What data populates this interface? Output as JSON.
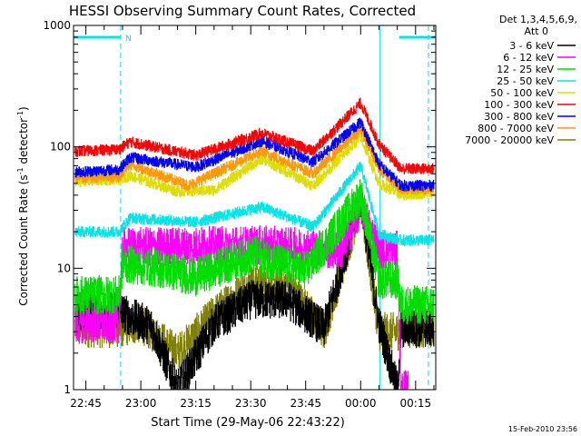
{
  "chart_data": {
    "type": "line",
    "title": "HESSI Observing Summary Count Rates, Corrected",
    "xlabel": "Start Time (29-May-06 22:43:22)",
    "ylabel_main": "Corrected Count Rate (s",
    "ylabel_sup1": "-1",
    "ylabel_mid": " detector",
    "ylabel_sup2": "-1",
    "ylabel_end": ")",
    "yscale": "log",
    "ylim": [
      1,
      1000
    ],
    "yticks": [
      {
        "value": 1,
        "label": "1"
      },
      {
        "value": 10,
        "label": "10"
      },
      {
        "value": 100,
        "label": "100"
      },
      {
        "value": 1000,
        "label": "1000"
      }
    ],
    "xlim_minutes": [
      -3.37,
      95.5
    ],
    "xticks": [
      {
        "minute": 0,
        "label": "22:45"
      },
      {
        "minute": 15,
        "label": "23:00"
      },
      {
        "minute": 30,
        "label": "23:15"
      },
      {
        "minute": 45,
        "label": "23:30"
      },
      {
        "minute": 60,
        "label": "23:45"
      },
      {
        "minute": 75,
        "label": "00:00"
      },
      {
        "minute": 90,
        "label": "00:15"
      }
    ],
    "night_bars": [
      [
        -3.37,
        9.5
      ],
      [
        85.5,
        95.5
      ]
    ],
    "night_marker": "N",
    "night_edges_solid": [
      -3.37,
      80.3
    ],
    "night_edges_dashed": [
      9.5,
      93.5
    ],
    "legend_header": [
      "Det 1,3,4,5,6,9,",
      "Att 0"
    ],
    "series": [
      {
        "name": "3 - 6 keV",
        "color": "#000000",
        "profile": [
          [
            -3,
            4.5
          ],
          [
            9,
            4.5
          ],
          [
            12,
            4
          ],
          [
            18,
            3.3
          ],
          [
            25,
            1
          ],
          [
            35,
            3.5
          ],
          [
            45,
            5.5
          ],
          [
            55,
            5.5
          ],
          [
            65,
            3.2
          ],
          [
            75,
            38
          ],
          [
            80,
            3.5
          ],
          [
            85,
            1
          ],
          [
            86,
            3.2
          ],
          [
            95,
            3.2
          ]
        ]
      },
      {
        "name": "6 - 12 keV",
        "color": "#ff00ff",
        "profile": [
          [
            -3,
            3.5
          ],
          [
            9,
            3.5
          ],
          [
            10,
            15
          ],
          [
            50,
            15.5
          ],
          [
            70,
            14
          ],
          [
            75,
            33
          ],
          [
            80,
            14
          ],
          [
            85,
            14
          ],
          [
            86,
            1
          ],
          [
            88,
            1
          ]
        ]
      },
      {
        "name": "12 - 25 keV",
        "color": "#00dd00",
        "profile": [
          [
            -3,
            6
          ],
          [
            9,
            6
          ],
          [
            10,
            11
          ],
          [
            20,
            10
          ],
          [
            30,
            8.5
          ],
          [
            45,
            13
          ],
          [
            60,
            9.5
          ],
          [
            75,
            40
          ],
          [
            80,
            8
          ],
          [
            85,
            8
          ],
          [
            86,
            5
          ],
          [
            95,
            5
          ]
        ]
      },
      {
        "name": "25 - 50 keV",
        "color": "#00e5e5",
        "profile": [
          [
            -3,
            20
          ],
          [
            9,
            20
          ],
          [
            12,
            26
          ],
          [
            30,
            24
          ],
          [
            48,
            32
          ],
          [
            62,
            22
          ],
          [
            75,
            70
          ],
          [
            80,
            19
          ],
          [
            86,
            17
          ],
          [
            95,
            17
          ]
        ]
      },
      {
        "name": "50 - 100 keV",
        "color": "#dddd00",
        "profile": [
          [
            -3,
            52
          ],
          [
            9,
            54
          ],
          [
            12,
            58
          ],
          [
            25,
            43
          ],
          [
            35,
            44
          ],
          [
            48,
            80
          ],
          [
            62,
            48
          ],
          [
            75,
            120
          ],
          [
            80,
            50
          ],
          [
            86,
            40
          ],
          [
            95,
            42
          ]
        ]
      },
      {
        "name": "100 - 300 keV",
        "color": "#ff0000",
        "profile": [
          [
            -3,
            92
          ],
          [
            9,
            95
          ],
          [
            12,
            110
          ],
          [
            30,
            85
          ],
          [
            48,
            130
          ],
          [
            62,
            92
          ],
          [
            75,
            230
          ],
          [
            80,
            105
          ],
          [
            86,
            66
          ],
          [
            95,
            66
          ]
        ]
      },
      {
        "name": "300 - 800 keV",
        "color": "#0000ff",
        "profile": [
          [
            -3,
            62
          ],
          [
            9,
            65
          ],
          [
            12,
            82
          ],
          [
            30,
            68
          ],
          [
            48,
            112
          ],
          [
            62,
            75
          ],
          [
            75,
            160
          ],
          [
            80,
            72
          ],
          [
            86,
            48
          ],
          [
            95,
            48
          ]
        ]
      },
      {
        "name": "800 - 7000 keV",
        "color": "#ff9900",
        "profile": [
          [
            -3,
            55
          ],
          [
            9,
            57
          ],
          [
            12,
            72
          ],
          [
            28,
            48
          ],
          [
            48,
            92
          ],
          [
            62,
            60
          ],
          [
            75,
            140
          ],
          [
            80,
            65
          ],
          [
            86,
            45
          ],
          [
            95,
            45
          ]
        ]
      },
      {
        "name": "7000 - 20000 keV",
        "color": "#808000",
        "profile": [
          [
            -3,
            3.2
          ],
          [
            9,
            3.2
          ],
          [
            15,
            3.5
          ],
          [
            25,
            2
          ],
          [
            35,
            4.2
          ],
          [
            45,
            7.5
          ],
          [
            55,
            7.5
          ],
          [
            65,
            3
          ],
          [
            75,
            35
          ],
          [
            80,
            3
          ],
          [
            85,
            3
          ],
          [
            86,
            3.2
          ],
          [
            95,
            3.2
          ]
        ]
      }
    ],
    "grid": false,
    "legend_position": "right"
  },
  "footer": {
    "timestamp": "15-Feb-2010 23:56"
  }
}
